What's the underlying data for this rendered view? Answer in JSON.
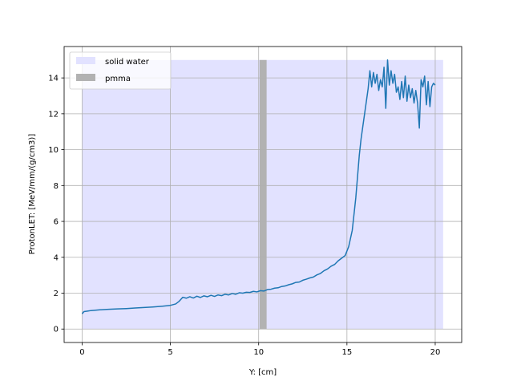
{
  "chart_data": {
    "type": "line",
    "title": "",
    "xlabel": "Y: [cm]",
    "ylabel": "ProtonLET: [MeV/mm/(g/cm3)]",
    "xlim": [
      -1.02,
      21.5
    ],
    "ylim": [
      -0.75,
      15.75
    ],
    "xticks": [
      0,
      5,
      10,
      15,
      20
    ],
    "yticks": [
      0,
      2,
      4,
      6,
      8,
      10,
      12,
      14
    ],
    "grid": true,
    "legend_position": "top-left",
    "regions": [
      {
        "name": "solid water",
        "x": [
          0,
          20.45
        ],
        "y": [
          0,
          15
        ],
        "color": "#e2e2ff"
      },
      {
        "name": "pmma",
        "x": [
          10.05,
          10.45
        ],
        "y": [
          0,
          15
        ],
        "color": "#b2b2b2"
      }
    ],
    "series": [
      {
        "color": "#1f77b4",
        "x": [
          0,
          0.1,
          0.3,
          0.5,
          1.0,
          1.5,
          2.0,
          2.5,
          3.0,
          3.5,
          4.0,
          4.5,
          5.0,
          5.3,
          5.5,
          5.7,
          5.9,
          6.1,
          6.3,
          6.5,
          6.7,
          6.9,
          7.1,
          7.3,
          7.5,
          7.7,
          7.9,
          8.1,
          8.3,
          8.5,
          8.7,
          8.9,
          9.1,
          9.3,
          9.5,
          9.7,
          9.9,
          10.1,
          10.3,
          10.5,
          10.7,
          10.9,
          11.1,
          11.3,
          11.5,
          11.7,
          11.9,
          12.1,
          12.3,
          12.5,
          12.7,
          12.9,
          13.1,
          13.3,
          13.5,
          13.7,
          13.9,
          14.1,
          14.3,
          14.5,
          14.7,
          14.9,
          15.1,
          15.3,
          15.5,
          15.6,
          15.7,
          15.8,
          15.9,
          16.0,
          16.1,
          16.2,
          16.3,
          16.4,
          16.5,
          16.6,
          16.7,
          16.8,
          16.9,
          17.0,
          17.1,
          17.2,
          17.3,
          17.4,
          17.5,
          17.6,
          17.7,
          17.8,
          17.9,
          18.0,
          18.1,
          18.2,
          18.3,
          18.4,
          18.5,
          18.6,
          18.7,
          18.8,
          18.9,
          19.0,
          19.1,
          19.2,
          19.3,
          19.4,
          19.5,
          19.6,
          19.7,
          19.8,
          19.9,
          20.0
        ],
        "y": [
          0.85,
          0.97,
          1.0,
          1.03,
          1.07,
          1.1,
          1.12,
          1.14,
          1.17,
          1.2,
          1.23,
          1.27,
          1.32,
          1.4,
          1.55,
          1.77,
          1.72,
          1.8,
          1.73,
          1.83,
          1.76,
          1.85,
          1.8,
          1.88,
          1.82,
          1.9,
          1.86,
          1.94,
          1.9,
          1.98,
          1.94,
          2.02,
          2.0,
          2.05,
          2.04,
          2.1,
          2.07,
          2.14,
          2.12,
          2.2,
          2.22,
          2.28,
          2.3,
          2.37,
          2.4,
          2.47,
          2.52,
          2.6,
          2.62,
          2.72,
          2.78,
          2.85,
          2.9,
          3.02,
          3.1,
          3.25,
          3.35,
          3.5,
          3.6,
          3.8,
          3.95,
          4.1,
          4.6,
          5.5,
          7.3,
          8.5,
          9.7,
          10.6,
          11.3,
          12.0,
          12.7,
          13.4,
          14.4,
          13.5,
          14.3,
          13.7,
          14.2,
          13.3,
          13.9,
          13.5,
          14.6,
          12.3,
          15.0,
          13.6,
          14.4,
          13.7,
          14.2,
          13.2,
          13.5,
          12.8,
          13.8,
          12.9,
          14.1,
          12.7,
          13.6,
          12.9,
          13.4,
          12.6,
          13.3,
          12.6,
          11.2,
          13.9,
          13.5,
          14.1,
          12.5,
          13.8,
          12.4,
          13.5,
          13.7,
          13.6
        ]
      }
    ]
  }
}
